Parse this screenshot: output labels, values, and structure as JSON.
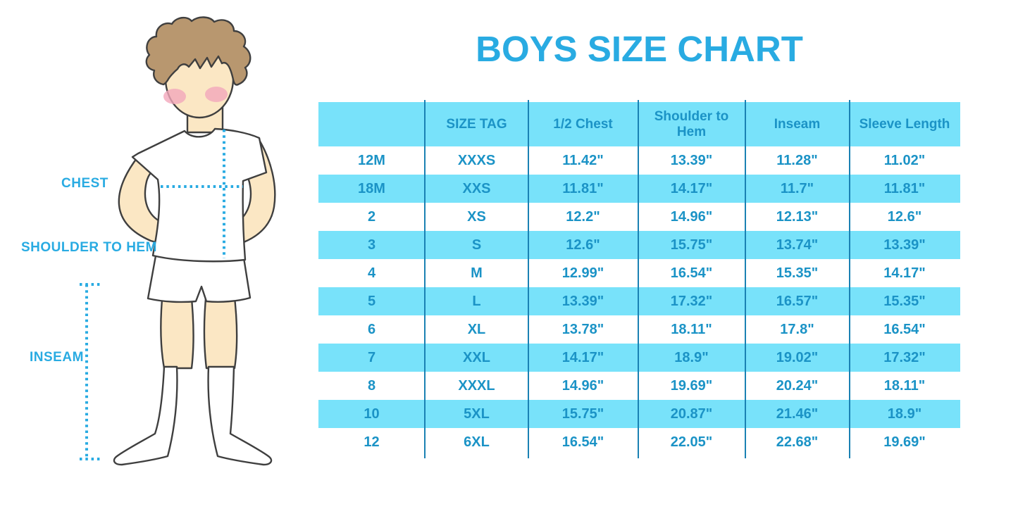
{
  "title": "BOYS SIZE CHART",
  "figure": {
    "description": "illustration of a boy in white t-shirt, shorts and knee socks with dotted measurement guides",
    "labels": {
      "chest": "CHEST",
      "shoulder_to_hem": "SHOULDER TO HEM",
      "inseam": "INSEAM"
    }
  },
  "colors": {
    "accent_blue": "#29abe2",
    "row_band_blue": "#78e2fa",
    "table_text_blue": "#1b93c6",
    "column_divider_blue": "#1a81b3",
    "skin": "#fbe7c4",
    "hair": "#b8976f"
  },
  "chart_data": {
    "type": "table",
    "title": "BOYS SIZE CHART",
    "columns": [
      "",
      "SIZE TAG",
      "1/2 Chest",
      "Shoulder to Hem",
      "Inseam",
      "Sleeve Length"
    ],
    "rows": [
      [
        "12M",
        "XXXS",
        "11.42\"",
        "13.39\"",
        "11.28\"",
        "11.02\""
      ],
      [
        "18M",
        "XXS",
        "11.81\"",
        "14.17\"",
        "11.7\"",
        "11.81\""
      ],
      [
        "2",
        "XS",
        "12.2\"",
        "14.96\"",
        "12.13\"",
        "12.6\""
      ],
      [
        "3",
        "S",
        "12.6\"",
        "15.75\"",
        "13.74\"",
        "13.39\""
      ],
      [
        "4",
        "M",
        "12.99\"",
        "16.54\"",
        "15.35\"",
        "14.17\""
      ],
      [
        "5",
        "L",
        "13.39\"",
        "17.32\"",
        "16.57\"",
        "15.35\""
      ],
      [
        "6",
        "XL",
        "13.78\"",
        "18.11\"",
        "17.8\"",
        "16.54\""
      ],
      [
        "7",
        "XXL",
        "14.17\"",
        "18.9\"",
        "19.02\"",
        "17.32\""
      ],
      [
        "8",
        "XXXL",
        "14.96\"",
        "19.69\"",
        "20.24\"",
        "18.11\""
      ],
      [
        "10",
        "5XL",
        "15.75\"",
        "20.87\"",
        "21.46\"",
        "18.9\""
      ],
      [
        "12",
        "6XL",
        "16.54\"",
        "22.05\"",
        "22.68\"",
        "19.69\""
      ]
    ],
    "layout": {
      "header_fill": "#78e2fa",
      "alternating_row_fill": "#78e2fa",
      "grid": "vertical column dividers only"
    }
  }
}
